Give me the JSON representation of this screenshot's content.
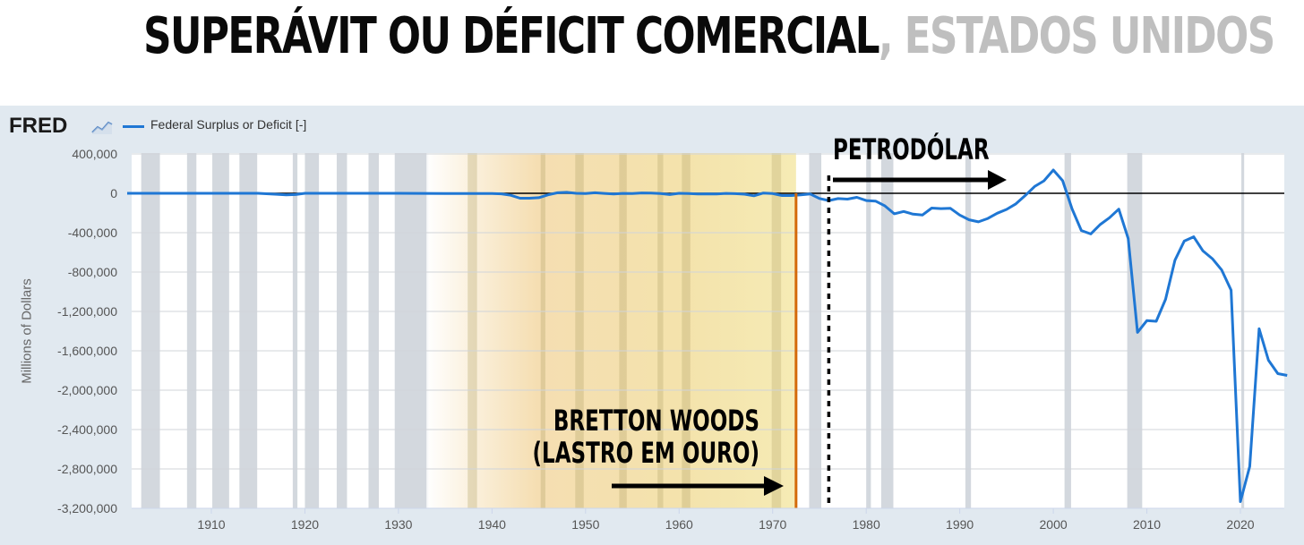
{
  "headline": {
    "main": "SUPERÁVIT OU DÉFICIT COMERCIAL",
    "separator": ", ",
    "sub": "ESTADOS UNIDOS"
  },
  "fred": {
    "logo": "FRED",
    "logo_icon": "chart-line-icon",
    "legend_label": "Federal Surplus or Deficit [-]"
  },
  "colors": {
    "series": "#1f77d4",
    "background": "#e1e9f0",
    "recession": "#d3d8de",
    "bretton_fill": "#f3d98a",
    "bretton_line": "#d46a0a"
  },
  "annotations": {
    "petrodolar": "PETRODÓLAR",
    "bretton_line1": "BRETTON WOODS",
    "bretton_line2": "(LASTRO EM OURO)"
  },
  "chart_data": {
    "type": "line",
    "title": "",
    "xlabel": "",
    "ylabel": "Millions of Dollars",
    "xlim": [
      1901,
      2025
    ],
    "ylim": [
      -3300000,
      450000
    ],
    "y_ticks": [
      400000,
      0,
      -400000,
      -800000,
      -1200000,
      -1600000,
      -2000000,
      -2400000,
      -2800000,
      -3200000
    ],
    "y_tick_labels": [
      "400,000",
      "0",
      "-400,000",
      "-800,000",
      "-1,200,000",
      "-1,600,000",
      "-2,000,000",
      "-2,400,000",
      "-2,800,000",
      "-3,200,000"
    ],
    "x_ticks": [
      1910,
      1920,
      1930,
      1940,
      1950,
      1960,
      1970,
      1980,
      1990,
      2000,
      2010,
      2020
    ],
    "grid": true,
    "legend_position": "top-left",
    "series": [
      {
        "name": "Federal Surplus or Deficit [-]",
        "x": [
          1901,
          1905,
          1910,
          1915,
          1917,
          1918,
          1919,
          1920,
          1925,
          1930,
          1935,
          1940,
          1941,
          1942,
          1943,
          1944,
          1945,
          1946,
          1947,
          1948,
          1949,
          1950,
          1951,
          1952,
          1953,
          1954,
          1955,
          1956,
          1957,
          1958,
          1959,
          1960,
          1961,
          1962,
          1963,
          1964,
          1965,
          1966,
          1967,
          1968,
          1969,
          1970,
          1971,
          1972,
          1973,
          1974,
          1975,
          1976,
          1977,
          1978,
          1979,
          1980,
          1981,
          1982,
          1983,
          1984,
          1985,
          1986,
          1987,
          1988,
          1989,
          1990,
          1991,
          1992,
          1993,
          1994,
          1995,
          1996,
          1997,
          1998,
          1999,
          2000,
          2001,
          2002,
          2003,
          2004,
          2005,
          2006,
          2007,
          2008,
          2009,
          2010,
          2011,
          2012,
          2013,
          2014,
          2015,
          2016,
          2017,
          2018,
          2019,
          2020,
          2021,
          2022,
          2023,
          2024,
          2025
        ],
        "y": [
          0,
          0,
          0,
          0,
          -10000,
          -15000,
          -13000,
          0,
          0,
          0,
          -3000,
          -3000,
          -5000,
          -20000,
          -50000,
          -50000,
          -45000,
          -15000,
          5000,
          10000,
          0,
          -3000,
          5000,
          -1000,
          -6000,
          -1000,
          -3000,
          4000,
          3000,
          -3000,
          -13000,
          0,
          -3000,
          -7000,
          -5000,
          -6000,
          -1000,
          -4000,
          -9000,
          -25000,
          3000,
          -3000,
          -23000,
          -23000,
          -15000,
          -6000,
          -53000,
          -74000,
          -54000,
          -59000,
          -41000,
          -74000,
          -79000,
          -128000,
          -208000,
          -185000,
          -212000,
          -221000,
          -150000,
          -155000,
          -153000,
          -221000,
          -269000,
          -290000,
          -255000,
          -203000,
          -164000,
          -107000,
          -22000,
          69000,
          126000,
          236000,
          128000,
          -158000,
          -378000,
          -413000,
          -318000,
          -248000,
          -161000,
          -459000,
          -1413000,
          -1294000,
          -1300000,
          -1077000,
          -680000,
          -485000,
          -442000,
          -585000,
          -665000,
          -779000,
          -984000,
          -3132000,
          -2775000,
          -1376000,
          -1695000,
          -1832000,
          -1850000
        ]
      }
    ],
    "recessions": [
      [
        1902.5,
        1904.5
      ],
      [
        1907.4,
        1908.4
      ],
      [
        1910.1,
        1911.9
      ],
      [
        1913.0,
        1914.9
      ],
      [
        1918.7,
        1919.2
      ],
      [
        1920.0,
        1921.5
      ],
      [
        1923.4,
        1924.5
      ],
      [
        1926.8,
        1927.9
      ],
      [
        1929.6,
        1933.2
      ],
      [
        1937.4,
        1938.4
      ],
      [
        1945.2,
        1945.7
      ],
      [
        1948.9,
        1949.8
      ],
      [
        1953.6,
        1954.4
      ],
      [
        1957.7,
        1958.3
      ],
      [
        1960.3,
        1961.2
      ],
      [
        1969.9,
        1970.9
      ],
      [
        1973.9,
        1975.2
      ],
      [
        1980.0,
        1980.5
      ],
      [
        1981.6,
        1982.9
      ],
      [
        1990.6,
        1991.2
      ],
      [
        2001.2,
        2001.9
      ],
      [
        2007.9,
        2009.5
      ],
      [
        2020.1,
        2020.4
      ]
    ],
    "annotations": [
      {
        "label": "PETRODÓLAR",
        "x": 1976
      },
      {
        "label": "BRETTON WOODS (LASTRO EM OURO)",
        "x_start": 1933,
        "x_end": 1972.5
      }
    ]
  }
}
